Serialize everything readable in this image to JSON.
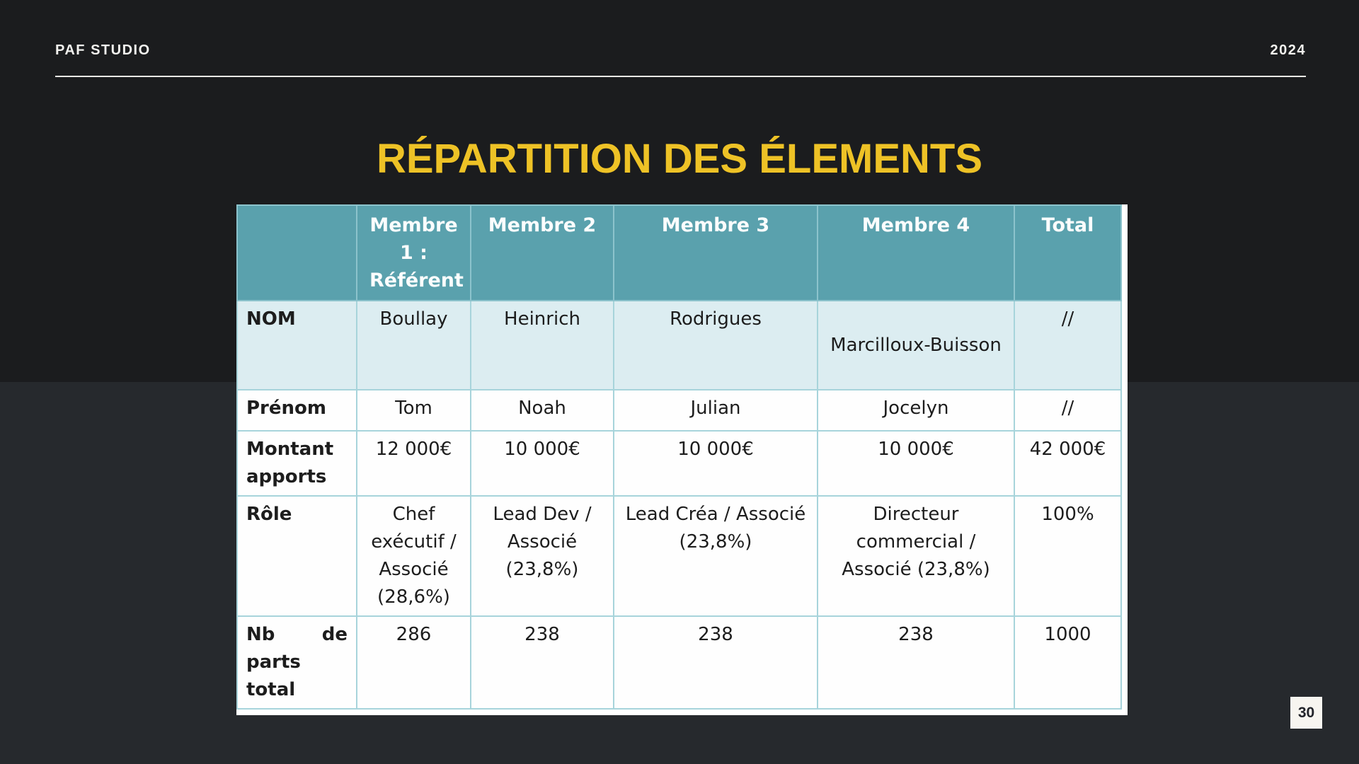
{
  "slide": {
    "brand": "PAF STUDIO",
    "year": "2024",
    "title": "RÉPARTITION DES ÉLEMENTS",
    "page_number": "30"
  },
  "table": {
    "corner_label": "",
    "columns": [
      "Membre 1 : Référent",
      "Membre 2",
      "Membre 3",
      "Membre 4",
      "Total"
    ],
    "rows": [
      {
        "label": "NOM",
        "values": [
          "Boullay",
          "Heinrich",
          "Rodrigues",
          "Marcilloux-Buisson",
          "//"
        ]
      },
      {
        "label": "Prénom",
        "values": [
          "Tom",
          "Noah",
          "Julian",
          "Jocelyn",
          "//"
        ]
      },
      {
        "label": "Montant apports",
        "values": [
          "12 000€",
          "10 000€",
          "10 000€",
          "10 000€",
          "42 000€"
        ]
      },
      {
        "label": "Rôle",
        "values": [
          "Chef exécutif / Associé (28,6%)",
          "Lead Dev / Associé (23,8%)",
          "Lead Créa / Associé (23,8%)",
          "Directeur commercial / Associé (23,8%)",
          "100%"
        ]
      },
      {
        "label": "Nb de parts total",
        "values": [
          "286",
          "238",
          "238",
          "238",
          "1000"
        ]
      }
    ]
  },
  "colors": {
    "background_top": "#1b1c1e",
    "background_bottom": "#26292d",
    "title_accent": "#eec226",
    "table_header": "#5aa1ad",
    "table_row_highlight": "#dcedf1",
    "table_border": "#a7d4db",
    "chrome_text": "#f2f1ee",
    "page_badge_background": "#f7f5f0"
  }
}
